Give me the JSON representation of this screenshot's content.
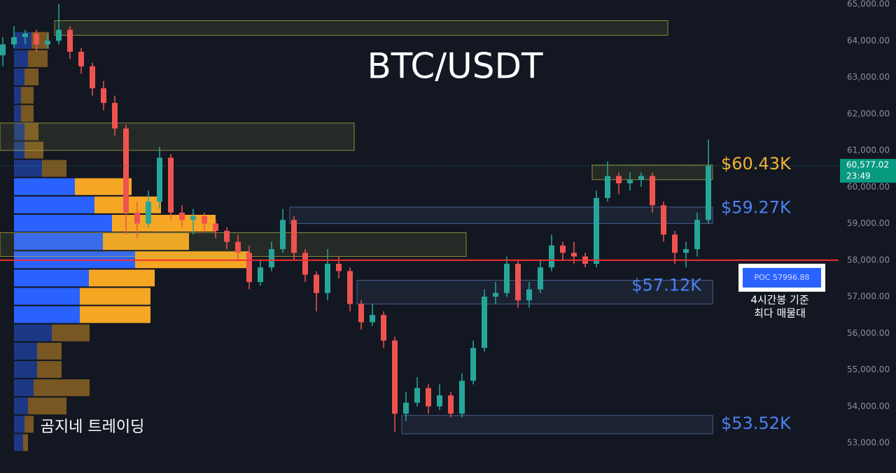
{
  "chart_data": {
    "type": "candlestick",
    "title": "BTC/USDT",
    "watermark": "곰지네 트레이딩",
    "ylim": [
      52400,
      65100
    ],
    "yticks": [
      {
        "value": 65000,
        "label": "65,000.00"
      },
      {
        "value": 64000,
        "label": "64,000.00"
      },
      {
        "value": 63000,
        "label": "63,000.00"
      },
      {
        "value": 62000,
        "label": "62,000.00"
      },
      {
        "value": 61000,
        "label": "61,000.00"
      },
      {
        "value": 60000,
        "label": "60,000.00"
      },
      {
        "value": 59000,
        "label": "59,000.00"
      },
      {
        "value": 58000,
        "label": "58,000.00"
      },
      {
        "value": 57000,
        "label": "57,000.00"
      },
      {
        "value": 56000,
        "label": "56,000.00"
      },
      {
        "value": 55000,
        "label": "55,000.00"
      },
      {
        "value": 54000,
        "label": "54,000.00"
      },
      {
        "value": 53000,
        "label": "53,000.00"
      }
    ],
    "up_color": "#26a69a",
    "down_color": "#ef5350",
    "candles": [
      [
        63600,
        64100,
        63300,
        63900
      ],
      [
        63900,
        64400,
        63800,
        64100
      ],
      [
        64100,
        64300,
        63900,
        64200
      ],
      [
        64200,
        64300,
        63700,
        63900
      ],
      [
        63900,
        64200,
        63800,
        64000
      ],
      [
        64000,
        65000,
        63900,
        64300
      ],
      [
        64300,
        64400,
        63500,
        63700
      ],
      [
        63700,
        63800,
        63100,
        63300
      ],
      [
        63300,
        63400,
        62500,
        62700
      ],
      [
        62700,
        62900,
        62100,
        62300
      ],
      [
        62300,
        62500,
        61400,
        61600
      ],
      [
        61600,
        61700,
        58700,
        59300
      ],
      [
        59300,
        59600,
        58600,
        59000
      ],
      [
        59000,
        59900,
        58900,
        59600
      ],
      [
        59600,
        61100,
        59400,
        60800
      ],
      [
        60800,
        60900,
        59100,
        59300
      ],
      [
        59300,
        59500,
        58900,
        59100
      ],
      [
        59100,
        59400,
        58700,
        59200
      ],
      [
        59200,
        59300,
        58800,
        59000
      ],
      [
        59000,
        59100,
        58600,
        58800
      ],
      [
        58800,
        58900,
        58300,
        58500
      ],
      [
        58500,
        58700,
        58000,
        58200
      ],
      [
        58200,
        58400,
        57200,
        57400
      ],
      [
        57400,
        58000,
        57300,
        57800
      ],
      [
        57800,
        58500,
        57700,
        58300
      ],
      [
        58300,
        59400,
        58200,
        59100
      ],
      [
        59100,
        59200,
        58000,
        58200
      ],
      [
        58200,
        58300,
        57400,
        57600
      ],
      [
        57600,
        57700,
        56600,
        57100
      ],
      [
        57100,
        58300,
        56900,
        57900
      ],
      [
        57900,
        58100,
        57500,
        57700
      ],
      [
        57700,
        57800,
        56600,
        56800
      ],
      [
        56800,
        56900,
        56100,
        56300
      ],
      [
        56300,
        56800,
        56200,
        56500
      ],
      [
        56500,
        56600,
        55600,
        55800
      ],
      [
        55800,
        55900,
        53300,
        53800
      ],
      [
        53800,
        54400,
        53600,
        54100
      ],
      [
        54100,
        54800,
        54000,
        54500
      ],
      [
        54500,
        54600,
        53800,
        54000
      ],
      [
        54000,
        54600,
        53900,
        54300
      ],
      [
        54300,
        54400,
        53700,
        53800
      ],
      [
        53800,
        54900,
        53700,
        54700
      ],
      [
        54700,
        55800,
        54600,
        55600
      ],
      [
        55600,
        57200,
        55500,
        57000
      ],
      [
        57000,
        57400,
        56800,
        57100
      ],
      [
        57100,
        58100,
        57000,
        57900
      ],
      [
        57900,
        58000,
        56700,
        56900
      ],
      [
        56900,
        57400,
        56700,
        57200
      ],
      [
        57200,
        58000,
        57100,
        57800
      ],
      [
        57800,
        58700,
        57700,
        58400
      ],
      [
        58400,
        58500,
        58000,
        58200
      ],
      [
        58200,
        58500,
        57900,
        58100
      ],
      [
        58100,
        58200,
        57800,
        57900
      ],
      [
        57900,
        59900,
        57800,
        59700
      ],
      [
        59700,
        60700,
        59600,
        60300
      ],
      [
        60300,
        60400,
        59800,
        60100
      ],
      [
        60100,
        60400,
        59900,
        60200
      ],
      [
        60200,
        60400,
        60000,
        60300
      ],
      [
        60300,
        60400,
        59300,
        59500
      ],
      [
        59500,
        59600,
        58500,
        58700
      ],
      [
        58700,
        58800,
        57900,
        58200
      ],
      [
        58200,
        58500,
        57800,
        58300
      ],
      [
        58300,
        59300,
        58100,
        59100
      ],
      [
        59100,
        61300,
        59000,
        60577.02
      ]
    ],
    "volume_profile": {
      "levels": [
        64000,
        63500,
        63000,
        62500,
        62000,
        61500,
        61000,
        60500,
        60000,
        59500,
        59000,
        58500,
        58000,
        57500,
        57000,
        56500,
        56000,
        55500,
        55000,
        54500,
        54000,
        53500,
        53000
      ],
      "buy": [
        25,
        20,
        15,
        10,
        10,
        15,
        15,
        40,
        87,
        115,
        140,
        127,
        173,
        107,
        94,
        94,
        54,
        33,
        33,
        28,
        20,
        15,
        13
      ],
      "sell": [
        25,
        28,
        20,
        18,
        18,
        20,
        27,
        35,
        81,
        95,
        148,
        123,
        162,
        94,
        101,
        101,
        54,
        35,
        35,
        80,
        55,
        13,
        7
      ],
      "buy_color": "#2962ff",
      "sell_color": "#f5a623"
    },
    "zones": [
      {
        "top": 64550,
        "bottom": 64150,
        "from": 5,
        "to": 59,
        "color": "#b8b94a"
      },
      {
        "top": 61750,
        "bottom": 61000,
        "from": 0,
        "to": 31,
        "color": "#b8b94a"
      },
      {
        "top": 60600,
        "bottom": 60200,
        "from": 53,
        "to": 63,
        "color": "#b8b94a"
      },
      {
        "top": 59450,
        "bottom": 59000,
        "from": 26,
        "to": 63,
        "color": "#5b7bb5"
      },
      {
        "top": 58750,
        "bottom": 58100,
        "from": 0,
        "to": 41,
        "color": "#b8b94a"
      },
      {
        "top": 57450,
        "bottom": 56800,
        "from": 32,
        "to": 63,
        "color": "#5b7bb5"
      },
      {
        "top": 53750,
        "bottom": 53250,
        "from": 36,
        "to": 63,
        "color": "#5b7bb5"
      }
    ],
    "price_levels": [
      {
        "value": 60430,
        "label": "$60.43K",
        "color": "#f5b335"
      },
      {
        "value": 59270,
        "label": "$59.27K",
        "color": "#4b82f0"
      },
      {
        "value": 57120,
        "label": "$57.12K",
        "color": "#4b82f0"
      },
      {
        "value": 53520,
        "label": "$53.52K",
        "color": "#4b82f0"
      }
    ],
    "poc": {
      "value": 57996.88,
      "label": "POC  57996.88",
      "note": [
        "4시간봉 기준",
        "최다 매물대"
      ]
    },
    "last_price": {
      "value": 60577.02,
      "label": "60,577.02",
      "countdown": "23:49"
    }
  }
}
